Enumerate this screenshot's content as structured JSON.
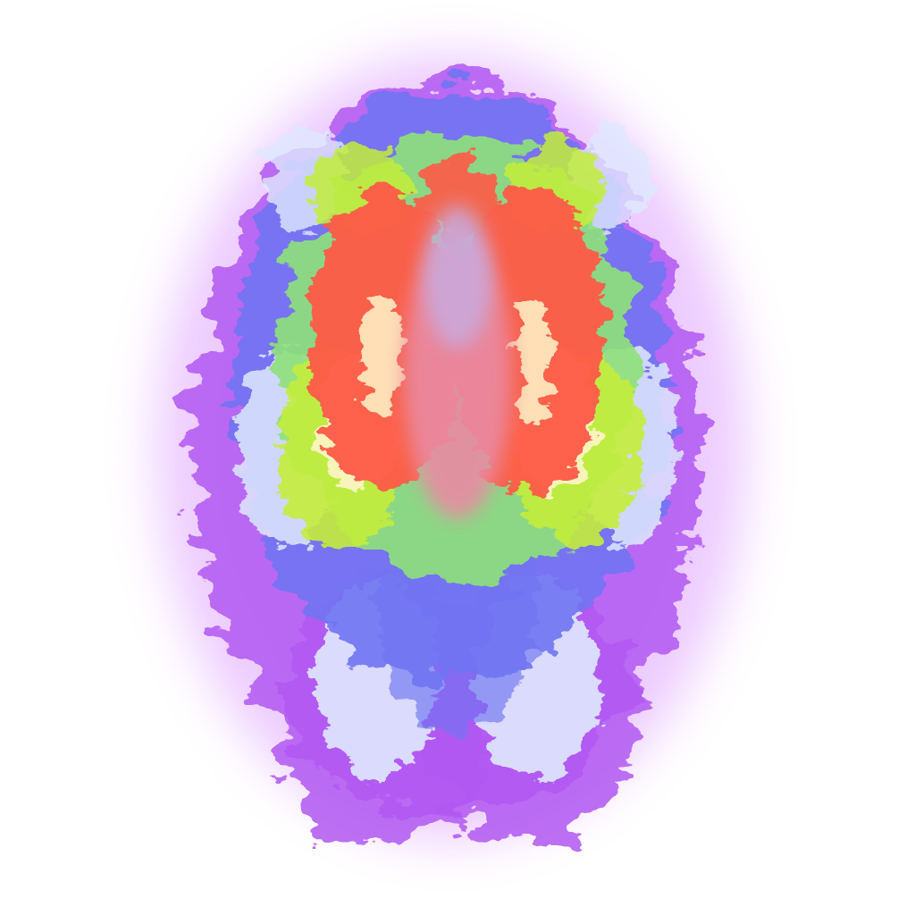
{
  "image": {
    "subject": "abstract-fluid-blot",
    "background_color": "#ffffff",
    "symmetry": "vertical-mirror",
    "palette": {
      "outer_haze": "#d68cff",
      "violet": "#b158f2",
      "blue": "#6f74f2",
      "pale_blue": "#dfe9ff",
      "green": "#8fe27a",
      "lime": "#c4ee3a",
      "cream": "#fff6c9",
      "red": "#ff5a47",
      "core_pink": "#e98aa3",
      "core_lilac": "#c8aadd"
    }
  }
}
